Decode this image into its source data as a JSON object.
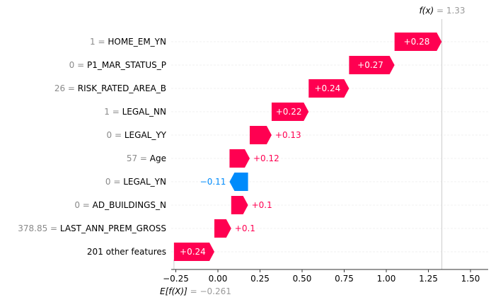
{
  "chart_data": {
    "type": "bar",
    "subtype": "waterfall",
    "base_value": -0.261,
    "final_value": 1.33,
    "fx_label": {
      "fx": "f(x)",
      "eq": " = ",
      "value": "1.33"
    },
    "efx_label": {
      "efx": "E[f(X)]",
      "eq": " = ",
      "value": "−0.261"
    },
    "xlim": [
      -0.27,
      1.6
    ],
    "ticks": [
      {
        "value": -0.25,
        "label": "−0.25"
      },
      {
        "value": 0.0,
        "label": "0.00"
      },
      {
        "value": 0.25,
        "label": "0.25"
      },
      {
        "value": 0.5,
        "label": "0.50"
      },
      {
        "value": 0.75,
        "label": "0.75"
      },
      {
        "value": 1.0,
        "label": "1.00"
      },
      {
        "value": 1.25,
        "label": "1.25"
      },
      {
        "value": 1.5,
        "label": "1.50"
      }
    ],
    "colors": {
      "positive": "#ff0051",
      "negative": "#008bfb",
      "grid": "#f2f2f2",
      "axis": "#333333",
      "muted": "#999999"
    },
    "features": [
      {
        "value_text": "1",
        "name": "HOME_EM_YN",
        "contribution": 0.28,
        "label": "+0.28"
      },
      {
        "value_text": "0",
        "name": "P1_MAR_STATUS_P",
        "contribution": 0.27,
        "label": "+0.27"
      },
      {
        "value_text": "26",
        "name": "RISK_RATED_AREA_B",
        "contribution": 0.24,
        "label": "+0.24"
      },
      {
        "value_text": "1",
        "name": "LEGAL_NN",
        "contribution": 0.22,
        "label": "+0.22"
      },
      {
        "value_text": "0",
        "name": "LEGAL_YY",
        "contribution": 0.13,
        "label": "+0.13"
      },
      {
        "value_text": "57",
        "name": "Age",
        "contribution": 0.12,
        "label": "+0.12"
      },
      {
        "value_text": "0",
        "name": "LEGAL_YN",
        "contribution": -0.11,
        "label": "−0.11"
      },
      {
        "value_text": "0",
        "name": "AD_BUILDINGS_N",
        "contribution": 0.1,
        "label": "+0.1"
      },
      {
        "value_text": "378.85",
        "name": "LAST_ANN_PREM_GROSS",
        "contribution": 0.1,
        "label": "+0.1"
      },
      {
        "value_text": "",
        "name": "201 other features",
        "contribution": 0.24,
        "label": "+0.24"
      }
    ]
  }
}
